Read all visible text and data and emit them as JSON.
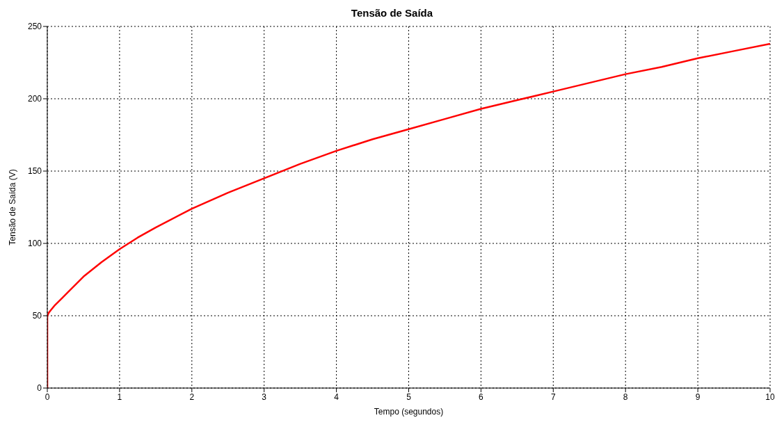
{
  "chart_data": {
    "type": "line",
    "title": "Tensão de Saída",
    "xlabel": "Tempo (segundos)",
    "ylabel": "Tensão de Saída (V)",
    "x": [
      0,
      0,
      0.02,
      0.05,
      0.1,
      0.2,
      0.3,
      0.5,
      0.75,
      1,
      1.25,
      1.5,
      2,
      2.5,
      3,
      3.5,
      4,
      4.5,
      5,
      5.5,
      6,
      6.5,
      7,
      7.5,
      8,
      8.5,
      9,
      9.5,
      10
    ],
    "series": [
      {
        "color": "#ff0000",
        "values": [
          0,
          50,
          52,
          54,
          57,
          62,
          67,
          77,
          87,
          96,
          104,
          111,
          124,
          135,
          145,
          155,
          164,
          172,
          179,
          186,
          193,
          199,
          205,
          211,
          217,
          222,
          228,
          233,
          238
        ]
      }
    ],
    "xlim": [
      0,
      10
    ],
    "xticks": [
      0,
      1,
      2,
      3,
      4,
      5,
      6,
      7,
      8,
      9,
      10
    ],
    "ylim": [
      0,
      250
    ],
    "yticks": [
      0,
      50,
      100,
      150,
      200,
      250
    ],
    "grid": true,
    "legend": false,
    "marker": "none",
    "line_style": "solid"
  }
}
